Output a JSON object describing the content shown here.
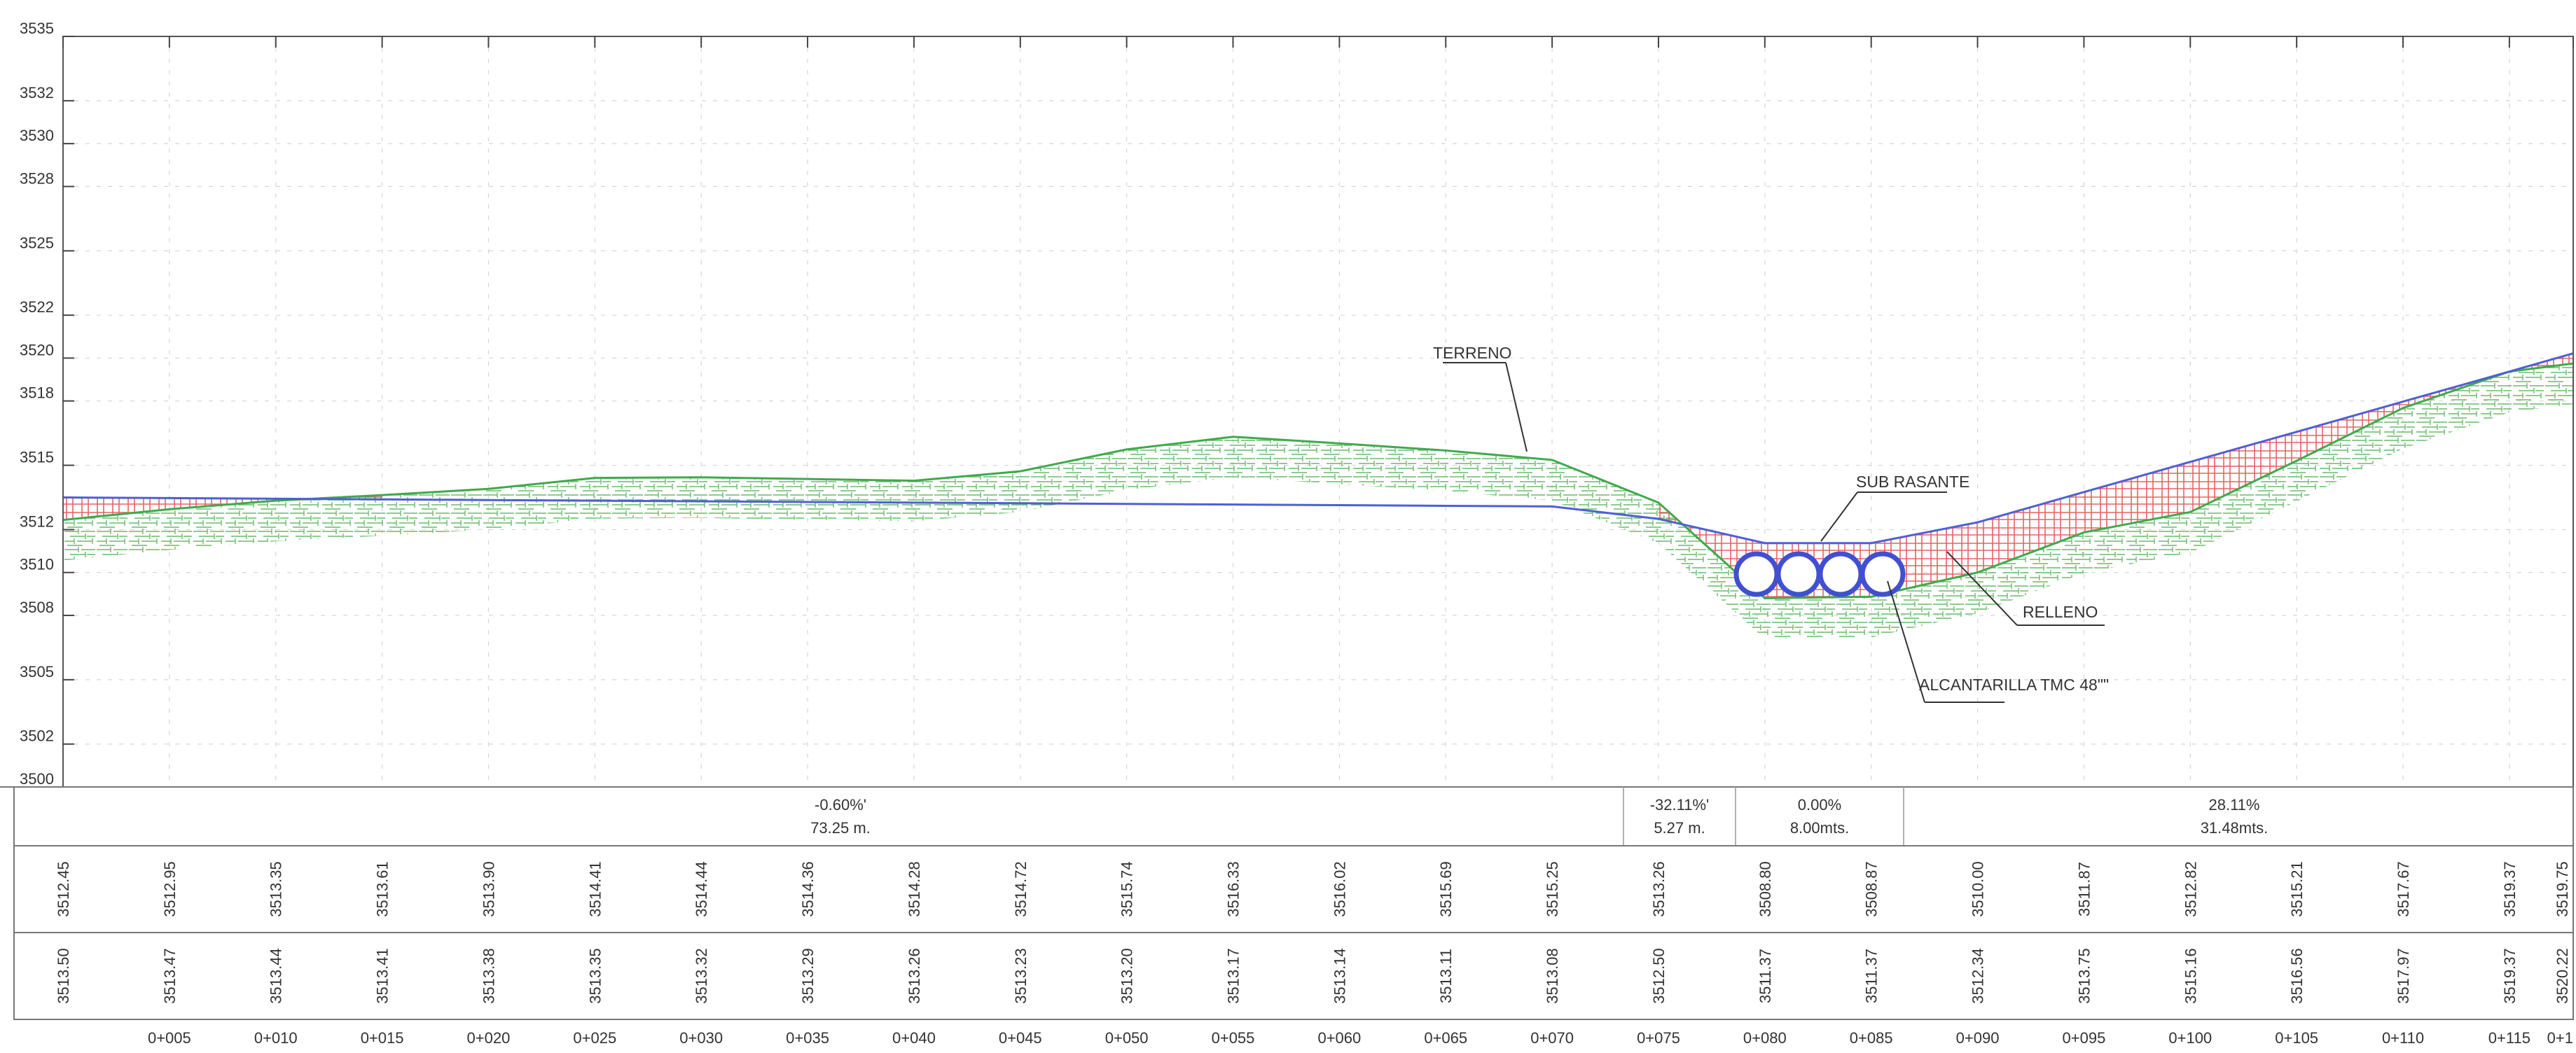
{
  "elevation_ticks": [
    "3535",
    "3532",
    "3530",
    "3528",
    "3525",
    "3522",
    "3520",
    "3518",
    "3515",
    "3512",
    "3510",
    "3508",
    "3505",
    "3502",
    "3500"
  ],
  "labels": {
    "terreno": "TERRENO",
    "sub_rasante": "SUB RASANTE",
    "relleno": "RELLENO",
    "alcantarilla": "ALCANTARILLA TMC 48\"\""
  },
  "slopes": [
    {
      "pct": "-0.60%'",
      "len": "73.25 m."
    },
    {
      "pct": "-32.11%'",
      "len": "5.27 m."
    },
    {
      "pct": "0.00%",
      "len": "8.00mts."
    },
    {
      "pct": "28.11%",
      "len": "31.48mts."
    }
  ],
  "chart_data": {
    "type": "line",
    "stations": [
      "0+005",
      "0+010",
      "0+015",
      "0+020",
      "0+025",
      "0+030",
      "0+035",
      "0+040",
      "0+045",
      "0+050",
      "0+055",
      "0+060",
      "0+065",
      "0+070",
      "0+075",
      "0+080",
      "0+085",
      "0+090",
      "0+095",
      "0+100",
      "0+105",
      "0+110",
      "0+115",
      "0+1"
    ],
    "x": [
      0,
      5,
      10,
      15,
      20,
      25,
      30,
      35,
      40,
      45,
      50,
      55,
      60,
      65,
      70,
      75,
      80,
      85,
      90,
      95,
      100,
      105,
      110,
      115,
      118
    ],
    "cota_terreno": [
      "3512.45",
      "3512.95",
      "3513.35",
      "3513.61",
      "3513.90",
      "3514.41",
      "3514.44",
      "3514.36",
      "3514.28",
      "3514.72",
      "3515.74",
      "3516.33",
      "3516.02",
      "3515.69",
      "3515.25",
      "3513.26",
      "3508.80",
      "3508.87",
      "3510.00",
      "3511.87",
      "3512.82",
      "3515.21",
      "3517.67",
      "3519.37",
      "3519.75"
    ],
    "cota_rasante": [
      "3513.50",
      "3513.47",
      "3513.44",
      "3513.41",
      "3513.38",
      "3513.35",
      "3513.32",
      "3513.29",
      "3513.26",
      "3513.23",
      "3513.20",
      "3513.17",
      "3513.14",
      "3513.11",
      "3513.08",
      "3512.50",
      "3511.37",
      "3511.37",
      "3512.34",
      "3513.75",
      "3515.16",
      "3516.56",
      "3517.97",
      "3519.37",
      "3520.22"
    ],
    "series": [
      {
        "name": "TERRENO"
      },
      {
        "name": "SUB RASANTE"
      }
    ],
    "ylim": [
      3500,
      3535
    ],
    "grid": true,
    "colors": {
      "terreno": "#3faa4c",
      "rasante": "#4f5fd6",
      "relleno": "#e04848",
      "culvert": "#4150d0"
    }
  }
}
